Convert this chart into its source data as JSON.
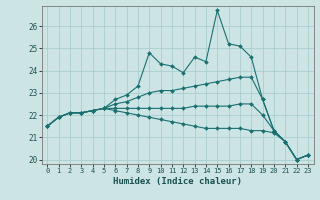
{
  "xlabel": "Humidex (Indice chaleur)",
  "ylabel": "",
  "background_color": "#cde4e4",
  "grid_color": "#aacece",
  "line_color": "#1a7070",
  "xlim": [
    -0.5,
    23.5
  ],
  "ylim": [
    19.8,
    26.9
  ],
  "yticks": [
    20,
    21,
    22,
    23,
    24,
    25,
    26
  ],
  "xticks": [
    0,
    1,
    2,
    3,
    4,
    5,
    6,
    7,
    8,
    9,
    10,
    11,
    12,
    13,
    14,
    15,
    16,
    17,
    18,
    19,
    20,
    21,
    22,
    23
  ],
  "lines": [
    [
      21.5,
      21.9,
      22.1,
      22.1,
      22.2,
      22.3,
      22.7,
      22.9,
      23.3,
      24.8,
      24.3,
      24.2,
      23.9,
      24.6,
      24.4,
      26.7,
      25.2,
      25.1,
      24.6,
      22.7,
      21.3,
      20.8,
      20.0,
      20.2
    ],
    [
      21.5,
      21.9,
      22.1,
      22.1,
      22.2,
      22.3,
      22.5,
      22.6,
      22.8,
      23.0,
      23.1,
      23.1,
      23.2,
      23.3,
      23.4,
      23.5,
      23.6,
      23.7,
      23.7,
      22.7,
      21.3,
      20.8,
      20.0,
      20.2
    ],
    [
      21.5,
      21.9,
      22.1,
      22.1,
      22.2,
      22.3,
      22.3,
      22.3,
      22.3,
      22.3,
      22.3,
      22.3,
      22.3,
      22.4,
      22.4,
      22.4,
      22.4,
      22.5,
      22.5,
      22.0,
      21.3,
      20.8,
      20.0,
      20.2
    ],
    [
      21.5,
      21.9,
      22.1,
      22.1,
      22.2,
      22.3,
      22.2,
      22.1,
      22.0,
      21.9,
      21.8,
      21.7,
      21.6,
      21.5,
      21.4,
      21.4,
      21.4,
      21.4,
      21.3,
      21.3,
      21.2,
      20.8,
      20.0,
      20.2
    ]
  ]
}
